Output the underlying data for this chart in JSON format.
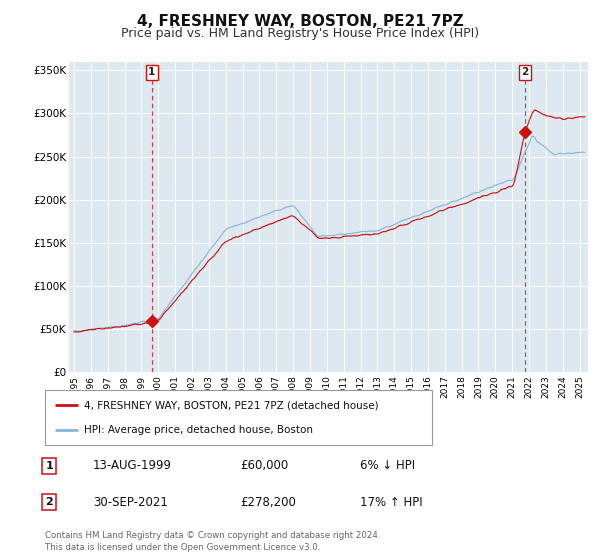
{
  "title": "4, FRESHNEY WAY, BOSTON, PE21 7PZ",
  "subtitle": "Price paid vs. HM Land Registry's House Price Index (HPI)",
  "title_fontsize": 11,
  "subtitle_fontsize": 9,
  "background_color": "#ffffff",
  "plot_bg_color": "#dde8f0",
  "grid_color": "#ffffff",
  "hpi_color": "#85b8d8",
  "price_color": "#cc1111",
  "point1_date": 1999.617,
  "point1_value": 60000,
  "point2_date": 2021.747,
  "point2_value": 278200,
  "xmin": 1994.7,
  "xmax": 2025.5,
  "ymin": 0,
  "ymax": 360000,
  "yticks": [
    0,
    50000,
    100000,
    150000,
    200000,
    250000,
    300000,
    350000
  ],
  "ytick_labels": [
    "£0",
    "£50K",
    "£100K",
    "£150K",
    "£200K",
    "£250K",
    "£300K",
    "£350K"
  ],
  "xticks": [
    1995,
    1996,
    1997,
    1998,
    1999,
    2000,
    2001,
    2002,
    2003,
    2004,
    2005,
    2006,
    2007,
    2008,
    2009,
    2010,
    2011,
    2012,
    2013,
    2014,
    2015,
    2016,
    2017,
    2018,
    2019,
    2020,
    2021,
    2022,
    2023,
    2024,
    2025
  ],
  "legend_label_price": "4, FRESHNEY WAY, BOSTON, PE21 7PZ (detached house)",
  "legend_label_hpi": "HPI: Average price, detached house, Boston",
  "annotation1_label": "1",
  "annotation1_date_str": "13-AUG-1999",
  "annotation1_price_str": "£60,000",
  "annotation1_pct_str": "6% ↓ HPI",
  "annotation2_label": "2",
  "annotation2_date_str": "30-SEP-2021",
  "annotation2_price_str": "£278,200",
  "annotation2_pct_str": "17% ↑ HPI",
  "footer_line1": "Contains HM Land Registry data © Crown copyright and database right 2024.",
  "footer_line2": "This data is licensed under the Open Government Licence v3.0."
}
